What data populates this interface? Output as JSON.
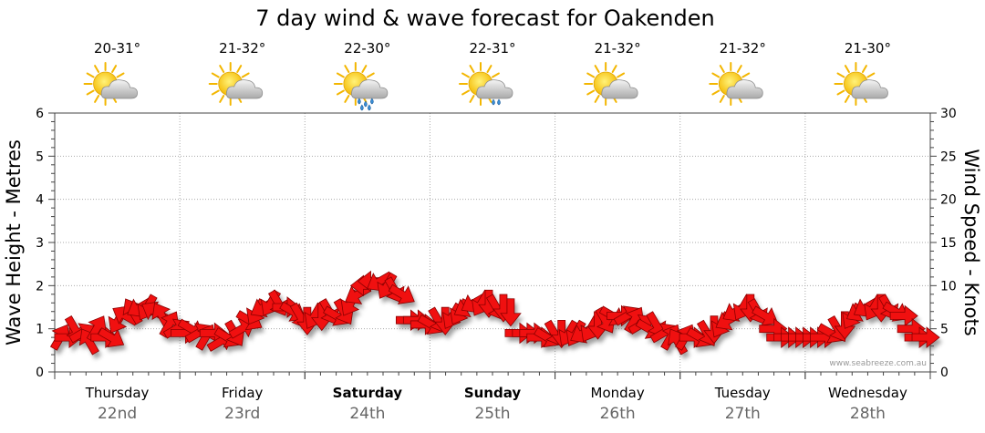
{
  "chart_data": {
    "type": "line",
    "title": "7 day wind & wave forecast for Oakenden",
    "ylabel_left": "Wave Height - Metres",
    "ylabel_right": "Wind Speed - Knots",
    "ylim_left": [
      0,
      6
    ],
    "ylim_right": [
      0,
      30
    ],
    "yticks_left": [
      "0",
      "1",
      "2",
      "3",
      "4",
      "5",
      "6"
    ],
    "yticks_right": [
      "0",
      "5",
      "10",
      "15",
      "20",
      "25",
      "30"
    ],
    "days": [
      {
        "name": "Thursday",
        "date": "22nd",
        "temp": "20-31°",
        "weather": "partly-cloudy",
        "bold": false
      },
      {
        "name": "Friday",
        "date": "23rd",
        "temp": "21-32°",
        "weather": "partly-cloudy",
        "bold": false
      },
      {
        "name": "Saturday",
        "date": "24th",
        "temp": "22-30°",
        "weather": "showers",
        "bold": true
      },
      {
        "name": "Sunday",
        "date": "25th",
        "temp": "22-31°",
        "weather": "light-showers",
        "bold": true
      },
      {
        "name": "Monday",
        "date": "26th",
        "temp": "21-32°",
        "weather": "partly-cloudy",
        "bold": false
      },
      {
        "name": "Tuesday",
        "date": "27th",
        "temp": "21-32°",
        "weather": "partly-cloudy",
        "bold": false
      },
      {
        "name": "Wednesday",
        "date": "28th",
        "temp": "21-30°",
        "weather": "partly-cloudy",
        "bold": false
      }
    ],
    "series": [
      {
        "name": "Wind speed (knots) and direction (degrees, direction arrow points to)",
        "unit": "knots",
        "axis": "right",
        "values": [
          4,
          4,
          5,
          4.5,
          3.5,
          5,
          4,
          4,
          6,
          6.5,
          7,
          7.5,
          7.5,
          7,
          6.5,
          5.5,
          5,
          4.5,
          5,
          4.5,
          4,
          4.5,
          3.5,
          4,
          4.5,
          5,
          6,
          7,
          7.5,
          8,
          8,
          7.5,
          7,
          6.5,
          6,
          6.5,
          6.5,
          7,
          6.5,
          7,
          8,
          9,
          10,
          10.5,
          10.5,
          10,
          9.5,
          9,
          6,
          6,
          5.5,
          5.5,
          6,
          6,
          6.5,
          7,
          7.5,
          8,
          8,
          8,
          7.5,
          7.5,
          7,
          4.5,
          4.5,
          4.5,
          4,
          4,
          4.5,
          4.5,
          4.5,
          4.5,
          4.5,
          5,
          5.5,
          6,
          6.5,
          6.5,
          6.5,
          6,
          5.5,
          5,
          5.5,
          4.5,
          4,
          3.5,
          4,
          4,
          4,
          4.5,
          5,
          5.5,
          6,
          7,
          7.5,
          7.5,
          7,
          6.5,
          5,
          4,
          4,
          4,
          4,
          4,
          4,
          4,
          4.5,
          5,
          5.5,
          6.5,
          7,
          7.5,
          7.5,
          7.5,
          7.5,
          7,
          6.5,
          5,
          4,
          4
        ],
        "directions": [
          30,
          90,
          150,
          60,
          330,
          30,
          90,
          120,
          210,
          300,
          330,
          240,
          210,
          300,
          330,
          30,
          60,
          90,
          120,
          60,
          30,
          90,
          60,
          120,
          150,
          60,
          120,
          210,
          240,
          210,
          150,
          90,
          120,
          150,
          180,
          210,
          180,
          150,
          120,
          150,
          210,
          240,
          270,
          270,
          240,
          210,
          150,
          120,
          90,
          90,
          90,
          120,
          150,
          180,
          210,
          210,
          240,
          240,
          210,
          180,
          150,
          180,
          180,
          90,
          90,
          90,
          90,
          120,
          150,
          180,
          210,
          210,
          240,
          210,
          180,
          150,
          120,
          90,
          60,
          30,
          60,
          120,
          150,
          60,
          30,
          330,
          30,
          90,
          120,
          150,
          180,
          210,
          240,
          240,
          210,
          180,
          150,
          120,
          90,
          90,
          90,
          90,
          90,
          90,
          90,
          90,
          120,
          150,
          180,
          210,
          240,
          240,
          210,
          180,
          150,
          120,
          90,
          90,
          90,
          90
        ]
      }
    ],
    "wave_series": {
      "name": "Wave height",
      "unit": "metres",
      "axis": "left",
      "values": []
    },
    "grid": true,
    "legend": "none"
  },
  "credit": "www.seabreeze.com.au"
}
